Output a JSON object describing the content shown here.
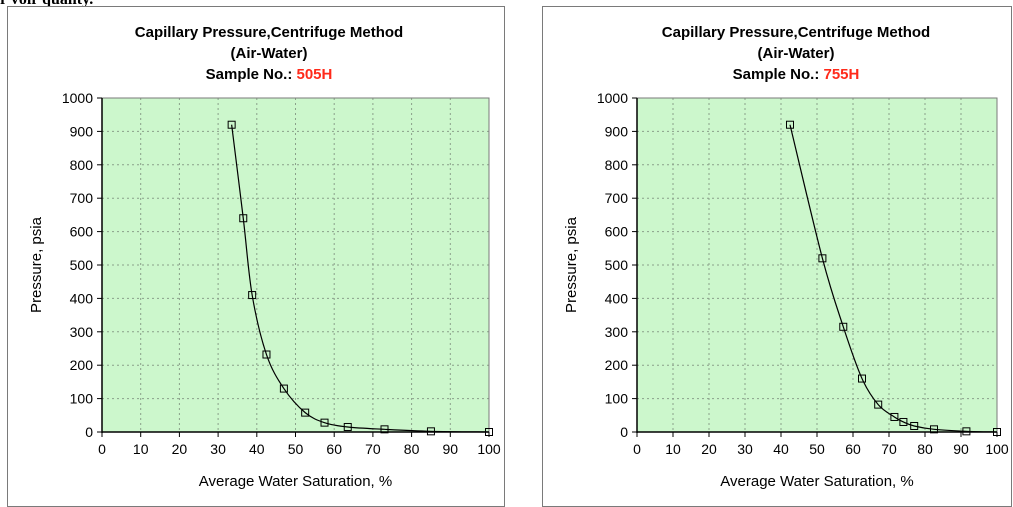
{
  "header": {
    "cut_text": "r voir quality."
  },
  "chart_data": [
    {
      "type": "line",
      "title_line1": "Capillary Pressure,Centrifuge Method",
      "title_line2": "(Air-Water)",
      "sample_label": "Sample No.: ",
      "sample_value": "505H",
      "xlabel": "Average Water Saturation, %",
      "ylabel": "Pressure, psia",
      "xlim": [
        0,
        100
      ],
      "ylim": [
        0,
        1000
      ],
      "x_ticks": [
        "0",
        "10",
        "20",
        "30",
        "40",
        "50",
        "60",
        "70",
        "80",
        "90",
        "100"
      ],
      "y_ticks": [
        "0",
        "100",
        "200",
        "300",
        "400",
        "500",
        "600",
        "700",
        "800",
        "900",
        "1000"
      ],
      "grid": true,
      "marker": "square",
      "series": [
        {
          "x": [
            33.5,
            36.5,
            38.8,
            42.5,
            47,
            52.5,
            57.5,
            63.5,
            73,
            85,
            100
          ],
          "y": [
            920,
            640,
            410,
            232,
            130,
            58,
            28,
            15,
            8,
            2,
            0
          ]
        }
      ]
    },
    {
      "type": "line",
      "title_line1": "Capillary Pressure,Centrifuge Method",
      "title_line2": "(Air-Water)",
      "sample_label": "Sample No.: ",
      "sample_value": "755H",
      "xlabel": "Average Water Saturation, %",
      "ylabel": "Pressure, psia",
      "xlim": [
        0,
        100
      ],
      "ylim": [
        0,
        1000
      ],
      "x_ticks": [
        "0",
        "10",
        "20",
        "30",
        "40",
        "50",
        "60",
        "70",
        "80",
        "90",
        "100"
      ],
      "y_ticks": [
        "0",
        "100",
        "200",
        "300",
        "400",
        "500",
        "600",
        "700",
        "800",
        "900",
        "1000"
      ],
      "grid": true,
      "marker": "square",
      "series": [
        {
          "x": [
            42.5,
            51.5,
            57.3,
            62.5,
            67,
            71.5,
            74,
            77,
            82.5,
            91.5,
            100
          ],
          "y": [
            920,
            520,
            315,
            160,
            82,
            45,
            30,
            18,
            8,
            2,
            0
          ]
        }
      ]
    }
  ],
  "colors": {
    "plot_bg": "#ccf7cc",
    "grid": "#8aa08a",
    "line": "#000000",
    "sample_value": "#ff2a1a"
  }
}
